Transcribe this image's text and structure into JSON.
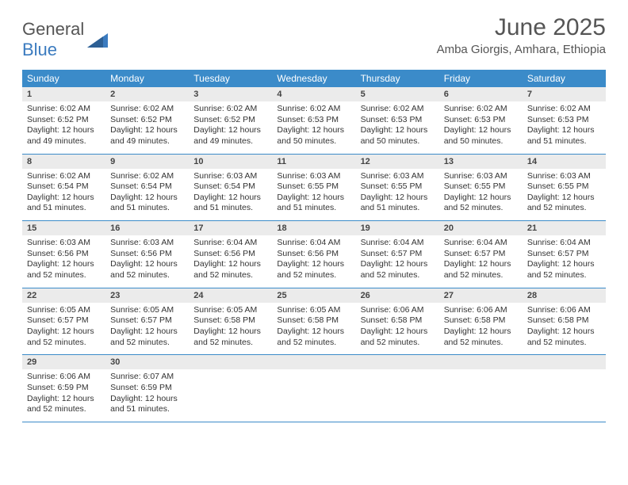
{
  "brand": {
    "word1": "General",
    "word2": "Blue",
    "accent_color": "#3b7bbf"
  },
  "title": "June 2025",
  "location": "Amba Giorgis, Amhara, Ethiopia",
  "header_bg": "#3b8bc9",
  "header_text": "#ffffff",
  "daynum_bg": "#ebebeb",
  "rule_color": "#3b8bc9",
  "dow": [
    "Sunday",
    "Monday",
    "Tuesday",
    "Wednesday",
    "Thursday",
    "Friday",
    "Saturday"
  ],
  "weeks": [
    [
      {
        "n": "1",
        "sr": "6:02 AM",
        "ss": "6:52 PM",
        "dl": "12 hours and 49 minutes."
      },
      {
        "n": "2",
        "sr": "6:02 AM",
        "ss": "6:52 PM",
        "dl": "12 hours and 49 minutes."
      },
      {
        "n": "3",
        "sr": "6:02 AM",
        "ss": "6:52 PM",
        "dl": "12 hours and 49 minutes."
      },
      {
        "n": "4",
        "sr": "6:02 AM",
        "ss": "6:53 PM",
        "dl": "12 hours and 50 minutes."
      },
      {
        "n": "5",
        "sr": "6:02 AM",
        "ss": "6:53 PM",
        "dl": "12 hours and 50 minutes."
      },
      {
        "n": "6",
        "sr": "6:02 AM",
        "ss": "6:53 PM",
        "dl": "12 hours and 50 minutes."
      },
      {
        "n": "7",
        "sr": "6:02 AM",
        "ss": "6:53 PM",
        "dl": "12 hours and 51 minutes."
      }
    ],
    [
      {
        "n": "8",
        "sr": "6:02 AM",
        "ss": "6:54 PM",
        "dl": "12 hours and 51 minutes."
      },
      {
        "n": "9",
        "sr": "6:02 AM",
        "ss": "6:54 PM",
        "dl": "12 hours and 51 minutes."
      },
      {
        "n": "10",
        "sr": "6:03 AM",
        "ss": "6:54 PM",
        "dl": "12 hours and 51 minutes."
      },
      {
        "n": "11",
        "sr": "6:03 AM",
        "ss": "6:55 PM",
        "dl": "12 hours and 51 minutes."
      },
      {
        "n": "12",
        "sr": "6:03 AM",
        "ss": "6:55 PM",
        "dl": "12 hours and 51 minutes."
      },
      {
        "n": "13",
        "sr": "6:03 AM",
        "ss": "6:55 PM",
        "dl": "12 hours and 52 minutes."
      },
      {
        "n": "14",
        "sr": "6:03 AM",
        "ss": "6:55 PM",
        "dl": "12 hours and 52 minutes."
      }
    ],
    [
      {
        "n": "15",
        "sr": "6:03 AM",
        "ss": "6:56 PM",
        "dl": "12 hours and 52 minutes."
      },
      {
        "n": "16",
        "sr": "6:03 AM",
        "ss": "6:56 PM",
        "dl": "12 hours and 52 minutes."
      },
      {
        "n": "17",
        "sr": "6:04 AM",
        "ss": "6:56 PM",
        "dl": "12 hours and 52 minutes."
      },
      {
        "n": "18",
        "sr": "6:04 AM",
        "ss": "6:56 PM",
        "dl": "12 hours and 52 minutes."
      },
      {
        "n": "19",
        "sr": "6:04 AM",
        "ss": "6:57 PM",
        "dl": "12 hours and 52 minutes."
      },
      {
        "n": "20",
        "sr": "6:04 AM",
        "ss": "6:57 PM",
        "dl": "12 hours and 52 minutes."
      },
      {
        "n": "21",
        "sr": "6:04 AM",
        "ss": "6:57 PM",
        "dl": "12 hours and 52 minutes."
      }
    ],
    [
      {
        "n": "22",
        "sr": "6:05 AM",
        "ss": "6:57 PM",
        "dl": "12 hours and 52 minutes."
      },
      {
        "n": "23",
        "sr": "6:05 AM",
        "ss": "6:57 PM",
        "dl": "12 hours and 52 minutes."
      },
      {
        "n": "24",
        "sr": "6:05 AM",
        "ss": "6:58 PM",
        "dl": "12 hours and 52 minutes."
      },
      {
        "n": "25",
        "sr": "6:05 AM",
        "ss": "6:58 PM",
        "dl": "12 hours and 52 minutes."
      },
      {
        "n": "26",
        "sr": "6:06 AM",
        "ss": "6:58 PM",
        "dl": "12 hours and 52 minutes."
      },
      {
        "n": "27",
        "sr": "6:06 AM",
        "ss": "6:58 PM",
        "dl": "12 hours and 52 minutes."
      },
      {
        "n": "28",
        "sr": "6:06 AM",
        "ss": "6:58 PM",
        "dl": "12 hours and 52 minutes."
      }
    ],
    [
      {
        "n": "29",
        "sr": "6:06 AM",
        "ss": "6:59 PM",
        "dl": "12 hours and 52 minutes."
      },
      {
        "n": "30",
        "sr": "6:07 AM",
        "ss": "6:59 PM",
        "dl": "12 hours and 51 minutes."
      },
      null,
      null,
      null,
      null,
      null
    ]
  ],
  "labels": {
    "sunrise": "Sunrise:",
    "sunset": "Sunset:",
    "daylight": "Daylight:"
  }
}
